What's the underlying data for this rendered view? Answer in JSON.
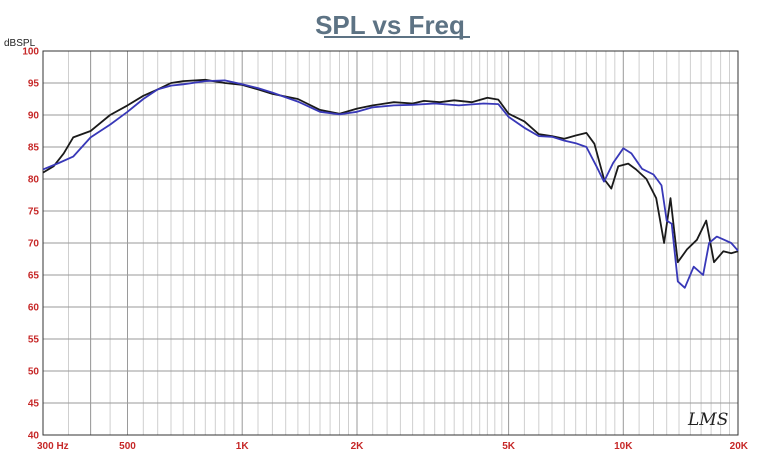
{
  "colors": {
    "title": "#5d7384",
    "tick_labels": "#c62828",
    "grid_major": "#9a9a9a",
    "grid_minor": "#cfcfcf",
    "series_black": "#1a1a1a",
    "series_blue": "#3838b8"
  },
  "watermark": "LMS",
  "chart_data": {
    "type": "line",
    "title": "SPL vs Freq",
    "ylabel": "dBSPL",
    "xlabel": "",
    "x_scale": "log",
    "xlim": [
      300,
      20000
    ],
    "ylim": [
      40,
      100
    ],
    "grid": true,
    "x_ticks": [
      {
        "value": 300,
        "label": "300  Hz"
      },
      {
        "value": 500,
        "label": "500"
      },
      {
        "value": 1000,
        "label": "1K"
      },
      {
        "value": 2000,
        "label": "2K"
      },
      {
        "value": 5000,
        "label": "5K"
      },
      {
        "value": 10000,
        "label": "10K"
      },
      {
        "value": 20000,
        "label": "20K"
      }
    ],
    "y_ticks": [
      40,
      45,
      50,
      55,
      60,
      65,
      70,
      75,
      80,
      85,
      90,
      95,
      100
    ],
    "series": [
      {
        "color": "#1a1a1a",
        "points": [
          [
            300,
            81
          ],
          [
            320,
            82
          ],
          [
            340,
            84
          ],
          [
            360,
            86.5
          ],
          [
            400,
            87.5
          ],
          [
            450,
            90
          ],
          [
            500,
            91.5
          ],
          [
            550,
            93
          ],
          [
            600,
            94
          ],
          [
            650,
            95
          ],
          [
            700,
            95.3
          ],
          [
            800,
            95.5
          ],
          [
            900,
            95
          ],
          [
            1000,
            94.7
          ],
          [
            1100,
            94
          ],
          [
            1200,
            93.3
          ],
          [
            1400,
            92.5
          ],
          [
            1600,
            90.8
          ],
          [
            1800,
            90.2
          ],
          [
            2000,
            91
          ],
          [
            2200,
            91.5
          ],
          [
            2500,
            92
          ],
          [
            2800,
            91.8
          ],
          [
            3000,
            92.2
          ],
          [
            3300,
            92
          ],
          [
            3600,
            92.3
          ],
          [
            4000,
            92
          ],
          [
            4400,
            92.7
          ],
          [
            4700,
            92.4
          ],
          [
            5000,
            90.2
          ],
          [
            5500,
            89
          ],
          [
            6000,
            87
          ],
          [
            6500,
            86.7
          ],
          [
            7000,
            86.3
          ],
          [
            7500,
            86.8
          ],
          [
            8000,
            87.2
          ],
          [
            8400,
            85.5
          ],
          [
            8900,
            80
          ],
          [
            9300,
            78.5
          ],
          [
            9700,
            82
          ],
          [
            10300,
            82.4
          ],
          [
            10800,
            81.5
          ],
          [
            11500,
            80
          ],
          [
            12200,
            77
          ],
          [
            12800,
            70
          ],
          [
            13300,
            77
          ],
          [
            13900,
            67
          ],
          [
            14700,
            69
          ],
          [
            15600,
            70.5
          ],
          [
            16500,
            73.5
          ],
          [
            17300,
            67
          ],
          [
            18300,
            68.7
          ],
          [
            19200,
            68.4
          ],
          [
            20000,
            68.7
          ]
        ]
      },
      {
        "color": "#3838b8",
        "points": [
          [
            300,
            81.5
          ],
          [
            330,
            82.5
          ],
          [
            360,
            83.5
          ],
          [
            400,
            86.5
          ],
          [
            450,
            88.5
          ],
          [
            500,
            90.5
          ],
          [
            550,
            92.5
          ],
          [
            600,
            94
          ],
          [
            650,
            94.6
          ],
          [
            700,
            94.8
          ],
          [
            800,
            95.3
          ],
          [
            900,
            95.4
          ],
          [
            1000,
            94.8
          ],
          [
            1100,
            94.2
          ],
          [
            1200,
            93.5
          ],
          [
            1400,
            92.1
          ],
          [
            1600,
            90.5
          ],
          [
            1800,
            90.1
          ],
          [
            2000,
            90.5
          ],
          [
            2200,
            91.2
          ],
          [
            2500,
            91.5
          ],
          [
            2800,
            91.6
          ],
          [
            3200,
            91.8
          ],
          [
            3700,
            91.5
          ],
          [
            4300,
            91.8
          ],
          [
            4700,
            91.7
          ],
          [
            5000,
            89.7
          ],
          [
            5500,
            88
          ],
          [
            6000,
            86.7
          ],
          [
            6500,
            86.6
          ],
          [
            7000,
            86
          ],
          [
            7500,
            85.6
          ],
          [
            8000,
            85
          ],
          [
            8500,
            82
          ],
          [
            8900,
            79.6
          ],
          [
            9400,
            82.5
          ],
          [
            10000,
            84.8
          ],
          [
            10500,
            84
          ],
          [
            11200,
            81.6
          ],
          [
            12000,
            80.7
          ],
          [
            12600,
            79
          ],
          [
            13000,
            73.5
          ],
          [
            13400,
            73
          ],
          [
            13900,
            64
          ],
          [
            14500,
            63
          ],
          [
            15300,
            66.3
          ],
          [
            16200,
            65
          ],
          [
            16800,
            70
          ],
          [
            17600,
            71
          ],
          [
            18400,
            70.5
          ],
          [
            19200,
            70
          ],
          [
            20000,
            68.8
          ]
        ]
      }
    ]
  }
}
